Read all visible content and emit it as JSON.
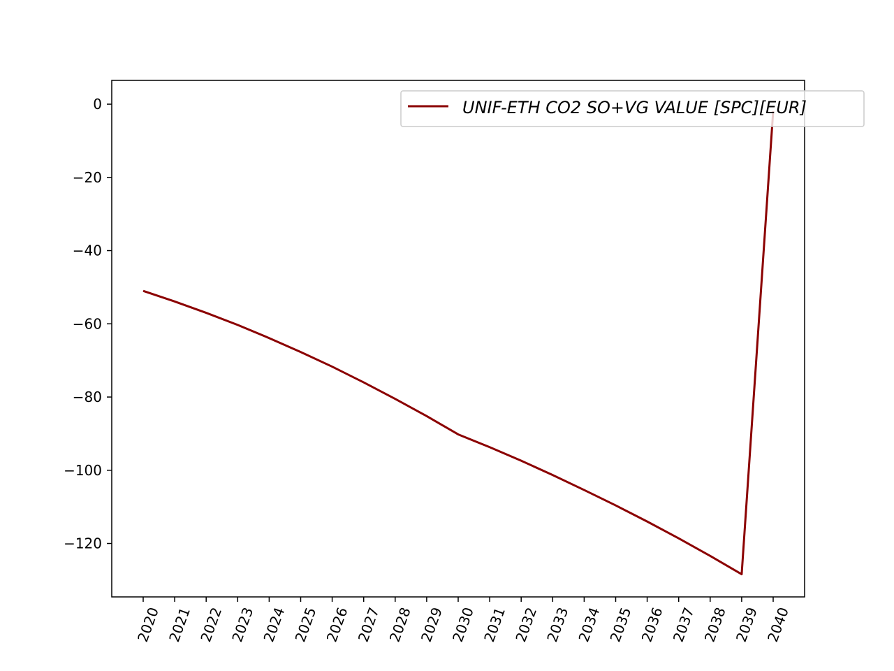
{
  "chart_data": {
    "type": "line",
    "title": "",
    "xlabel": "",
    "ylabel": "",
    "x": [
      "2020",
      "2021",
      "2022",
      "2023",
      "2024",
      "2025",
      "2026",
      "2027",
      "2028",
      "2029",
      "2030",
      "2031",
      "2032",
      "2033",
      "2034",
      "2035",
      "2036",
      "2037",
      "2038",
      "2039",
      "2040"
    ],
    "series": [
      {
        "name": "UNIF-ETH CO2 SO+VG VALUE [SPC][EUR]",
        "color": "#8b0000",
        "values": [
          -51.0,
          -53.9,
          -57.0,
          -60.3,
          -63.9,
          -67.7,
          -71.7,
          -76.0,
          -80.5,
          -85.2,
          -90.2,
          -93.7,
          -97.4,
          -101.3,
          -105.4,
          -109.6,
          -114.0,
          -118.6,
          -123.4,
          -128.4,
          -1.9
        ]
      }
    ],
    "ylim": [
      -134.6,
      6.5
    ],
    "yticks": [
      0,
      -20,
      -40,
      -60,
      -80,
      -100,
      -120
    ],
    "ytick_labels": [
      "0",
      "−20",
      "−40",
      "−60",
      "−80",
      "−100",
      "−120"
    ],
    "grid": false,
    "legend_position": "upper right"
  }
}
